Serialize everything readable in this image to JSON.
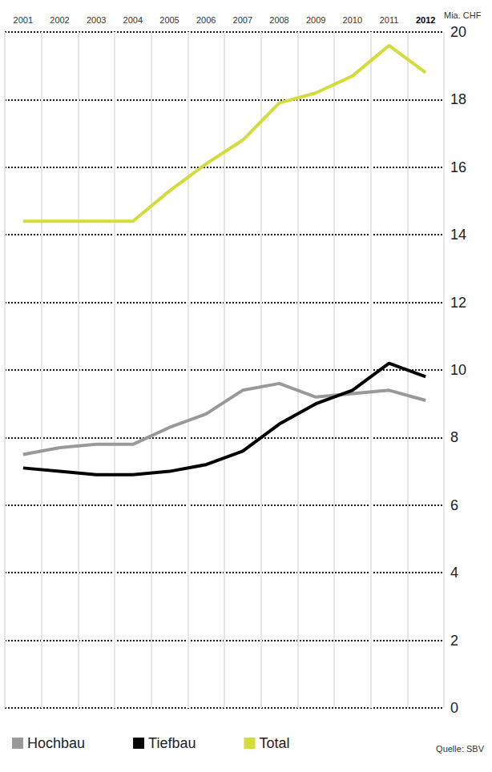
{
  "chart_data": {
    "type": "line",
    "y_label": "Mia. CHF",
    "categories": [
      "2001",
      "2002",
      "2003",
      "2004",
      "2005",
      "2006",
      "2007",
      "2008",
      "2009",
      "2010",
      "2011",
      "2012"
    ],
    "series": [
      {
        "name": "Hochbau",
        "color": "#999999",
        "values": [
          7.5,
          7.7,
          7.8,
          7.8,
          8.3,
          8.7,
          9.4,
          9.6,
          9.2,
          9.3,
          9.4,
          9.1
        ]
      },
      {
        "name": "Tiefbau",
        "color": "#000000",
        "values": [
          7.1,
          7.0,
          6.9,
          6.9,
          7.0,
          7.2,
          7.6,
          8.4,
          9.0,
          9.4,
          10.2,
          9.8
        ]
      },
      {
        "name": "Total",
        "color": "#d4dc3c",
        "values": [
          14.4,
          14.4,
          14.4,
          14.4,
          15.3,
          16.1,
          16.8,
          17.9,
          18.2,
          18.7,
          19.6,
          18.8
        ]
      }
    ],
    "ylim": [
      0,
      20
    ],
    "yticks": [
      0,
      2,
      4,
      6,
      8,
      10,
      12,
      14,
      16,
      18,
      20
    ],
    "grid": true,
    "legend": "bottom-left",
    "annotations": [
      "Quelle: SBV"
    ]
  }
}
